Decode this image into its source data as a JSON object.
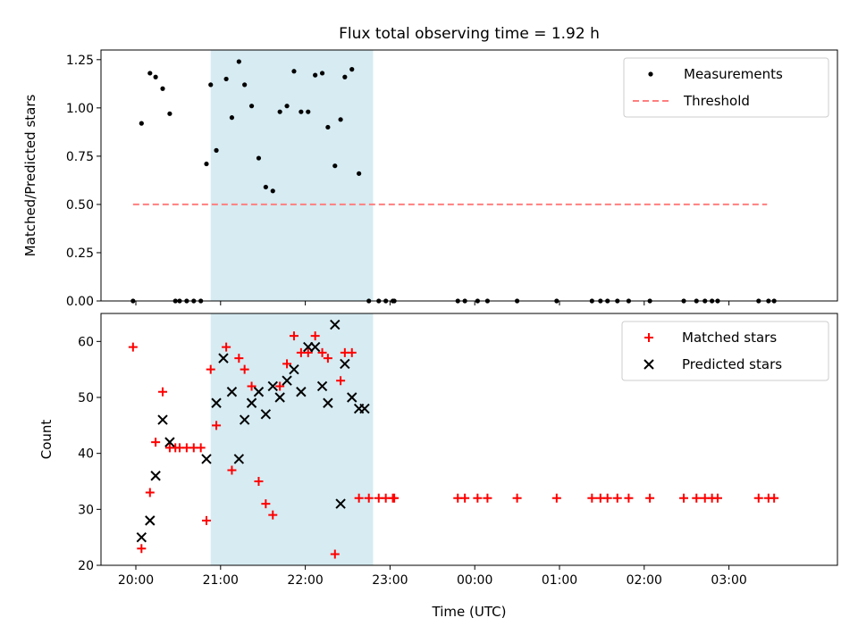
{
  "title": "Flux total observing time = 1.92 h",
  "chart_data": [
    {
      "type": "scatter",
      "ylabel": "Matched/Predicted stars",
      "ylim": [
        0,
        1.3
      ],
      "yticks": [
        "0.00",
        "0.25",
        "0.50",
        "0.75",
        "1.00",
        "1.25"
      ],
      "grid": false,
      "legend_position": "top-right",
      "highlight_span": {
        "start": "20:53",
        "end": "22:48",
        "color": "#add8e6"
      },
      "threshold": {
        "name": "Threshold",
        "value": 0.5,
        "from": "19:58",
        "to": "03:27",
        "color": "#ff7f7f"
      },
      "series": [
        {
          "name": "Measurements",
          "marker": "point",
          "color": "#000000",
          "times": [
            "19:58",
            "20:04",
            "20:10",
            "20:14",
            "20:19",
            "20:24",
            "20:28",
            "20:31",
            "20:36",
            "20:41",
            "20:46",
            "20:50",
            "20:53",
            "20:57",
            "21:04",
            "21:08",
            "21:13",
            "21:17",
            "21:22",
            "21:27",
            "21:32",
            "21:37",
            "21:42",
            "21:47",
            "21:52",
            "21:57",
            "22:02",
            "22:07",
            "22:12",
            "22:16",
            "22:21",
            "22:25",
            "22:28",
            "22:33",
            "22:38",
            "22:45",
            "22:52",
            "22:57",
            "23:02",
            "23:03",
            "23:48",
            "23:53",
            "00:02",
            "00:09",
            "00:30",
            "00:58",
            "01:23",
            "01:29",
            "01:34",
            "01:41",
            "01:49",
            "02:04",
            "02:28",
            "02:37",
            "02:43",
            "02:48",
            "02:52",
            "03:21",
            "03:28",
            "03:32"
          ],
          "values": [
            0,
            0.92,
            1.18,
            1.16,
            1.1,
            0.97,
            0,
            0,
            0,
            0,
            0,
            0.71,
            1.12,
            0.78,
            1.15,
            0.95,
            1.24,
            1.12,
            1.01,
            0.74,
            0.59,
            0.57,
            0.98,
            1.01,
            1.19,
            0.98,
            0.98,
            1.17,
            1.18,
            0.9,
            0.7,
            0.94,
            1.16,
            1.2,
            0.66,
            0,
            0,
            0,
            0,
            0,
            0,
            0,
            0,
            0,
            0,
            0,
            0,
            0,
            0,
            0,
            0,
            0,
            0,
            0,
            0,
            0,
            0,
            0,
            0,
            0
          ]
        }
      ]
    },
    {
      "type": "scatter",
      "ylabel": "Count",
      "xlabel": "Time (UTC)",
      "ylim": [
        20,
        65
      ],
      "yticks": [
        "20",
        "30",
        "40",
        "50",
        "60"
      ],
      "xticks": [
        "20:00",
        "21:00",
        "22:00",
        "23:00",
        "00:00",
        "01:00",
        "02:00",
        "03:00"
      ],
      "grid": false,
      "legend_position": "top-right",
      "highlight_span": {
        "start": "20:53",
        "end": "22:48",
        "color": "#add8e6"
      },
      "series": [
        {
          "name": "Matched stars",
          "marker": "plus",
          "color": "#ff0000",
          "times": [
            "19:58",
            "20:04",
            "20:10",
            "20:14",
            "20:19",
            "20:24",
            "20:28",
            "20:31",
            "20:36",
            "20:41",
            "20:46",
            "20:50",
            "20:53",
            "20:57",
            "21:04",
            "21:08",
            "21:13",
            "21:17",
            "21:22",
            "21:27",
            "21:32",
            "21:37",
            "21:42",
            "21:47",
            "21:52",
            "21:57",
            "22:02",
            "22:07",
            "22:12",
            "22:16",
            "22:21",
            "22:25",
            "22:28",
            "22:33",
            "22:38",
            "22:45",
            "22:52",
            "22:57",
            "23:02",
            "23:03",
            "23:48",
            "23:53",
            "00:02",
            "00:09",
            "00:30",
            "00:58",
            "01:23",
            "01:29",
            "01:34",
            "01:41",
            "01:49",
            "02:04",
            "02:28",
            "02:37",
            "02:43",
            "02:48",
            "02:52",
            "03:21",
            "03:28",
            "03:32"
          ],
          "values": [
            59,
            23,
            33,
            42,
            51,
            41,
            41,
            41,
            41,
            41,
            41,
            28,
            55,
            45,
            59,
            37,
            57,
            55,
            52,
            35,
            31,
            29,
            52,
            56,
            61,
            58,
            58,
            61,
            58,
            57,
            22,
            53,
            58,
            58,
            32,
            32,
            32,
            32,
            32,
            32,
            32,
            32,
            32,
            32,
            32,
            32,
            32,
            32,
            32,
            32,
            32,
            32,
            32,
            32,
            32,
            32,
            32,
            32,
            32,
            32
          ]
        },
        {
          "name": "Predicted stars",
          "marker": "x",
          "color": "#000000",
          "times": [
            "20:04",
            "20:10",
            "20:14",
            "20:19",
            "20:24",
            "20:50",
            "20:57",
            "21:02",
            "21:08",
            "21:13",
            "21:17",
            "21:22",
            "21:27",
            "21:32",
            "21:37",
            "21:42",
            "21:47",
            "21:52",
            "21:57",
            "22:02",
            "22:07",
            "22:12",
            "22:16",
            "22:21",
            "22:25",
            "22:28",
            "22:33",
            "22:38",
            "22:42"
          ],
          "values": [
            25,
            28,
            36,
            46,
            42,
            39,
            49,
            57,
            51,
            39,
            46,
            49,
            51,
            47,
            52,
            50,
            53,
            55,
            51,
            59,
            59,
            52,
            49,
            63,
            31,
            56,
            50,
            48,
            48
          ]
        }
      ]
    }
  ]
}
